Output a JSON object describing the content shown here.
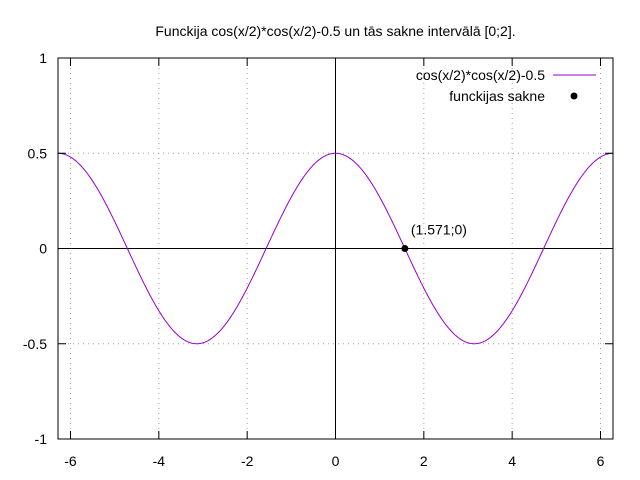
{
  "chart_data": {
    "type": "line",
    "title": "Funckija cos(x/2)*cos(x/2)-0.5 un tās sakne intervālā [0;2].",
    "xlabel": "",
    "ylabel": "",
    "xlim": [
      -6.2832,
      6.2832
    ],
    "ylim": [
      -1,
      1
    ],
    "grid": true,
    "legend_position": "top-right",
    "x_ticks": [
      -6,
      -4,
      -2,
      0,
      2,
      4,
      6
    ],
    "x_tick_labels": [
      "-6",
      "-4",
      "-2",
      "0",
      "2",
      "4",
      "6"
    ],
    "y_ticks": [
      -1,
      -0.5,
      0,
      0.5,
      1
    ],
    "y_tick_labels": [
      "-1",
      "-0.5",
      "0",
      "0.5",
      "1"
    ],
    "series": [
      {
        "name": "cos(x/2)*cos(x/2)-0.5",
        "function": "cos(x/2)*cos(x/2)-0.5",
        "color": "#9400d3"
      }
    ],
    "points": [
      {
        "name": "funckijas sakne",
        "x": 1.571,
        "y": 0,
        "label": "(1.571;0)",
        "color": "#000000"
      }
    ]
  }
}
